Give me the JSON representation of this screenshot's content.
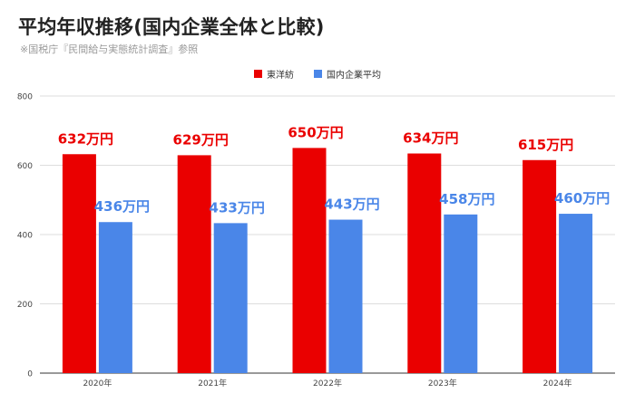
{
  "title": "平均年収推移(国内企業全体と比較)",
  "source_note": "※国税庁『民間給与実態統計調査』参照",
  "chart_data": {
    "type": "bar",
    "categories": [
      "2020年",
      "2021年",
      "2022年",
      "2023年",
      "2024年"
    ],
    "series": [
      {
        "name": "東洋紡",
        "color": "#ea0000",
        "values": [
          632,
          629,
          650,
          634,
          615
        ],
        "labels": [
          "632万円",
          "629万円",
          "650万円",
          "634万円",
          "615万円"
        ]
      },
      {
        "name": "国内企業平均",
        "color": "#4a86e8",
        "values": [
          436,
          433,
          443,
          458,
          460
        ],
        "labels": [
          "436万円",
          "433万円",
          "443万円",
          "458万円",
          "460万円"
        ]
      }
    ],
    "ylim": [
      0,
      800
    ],
    "yticks": [
      0,
      200,
      400,
      600,
      800
    ],
    "grid": true,
    "legend_position": "top"
  }
}
